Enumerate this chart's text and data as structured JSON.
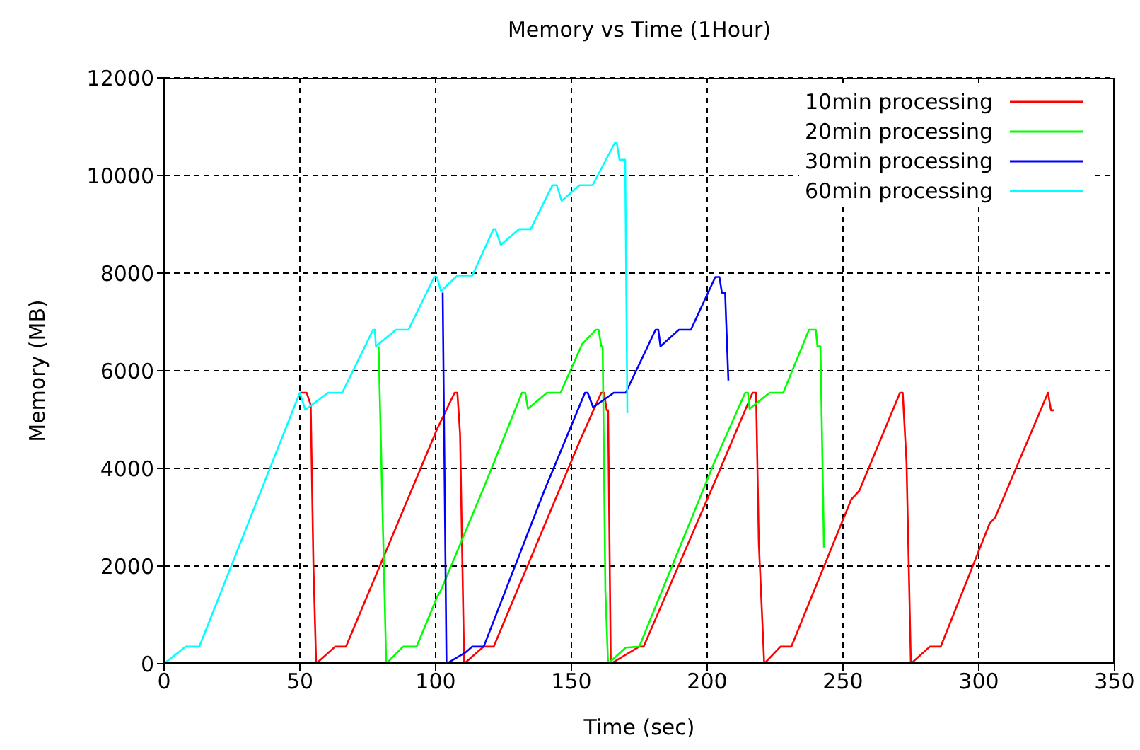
{
  "chart_data": {
    "type": "line",
    "title": "Memory vs Time (1Hour)",
    "xlabel": "Time (sec)",
    "ylabel": "Memory (MB)",
    "xlim": [
      0,
      350
    ],
    "xticks": [
      0,
      50,
      100,
      150,
      200,
      250,
      300,
      350
    ],
    "ylim": [
      0,
      12000
    ],
    "yticks": [
      0,
      2000,
      4000,
      6000,
      8000,
      10000,
      12000
    ],
    "grid": true,
    "legend": "top right",
    "marker": "none",
    "line_style": "solid",
    "series": [
      {
        "name": "10min processing",
        "color": "#ff0000",
        "x": [
          50,
          52.5,
          54,
          55,
          56,
          63,
          67,
          100.5,
          107,
          108,
          109,
          110.5,
          117.7,
          121.4,
          153,
          161,
          162,
          163,
          163.5,
          164.5,
          175,
          176.6,
          203.6,
          216.7,
          218,
          219,
          221,
          227,
          231,
          253,
          256,
          271,
          272,
          273.4,
          275,
          282,
          286,
          304,
          306,
          325.5,
          326.6,
          327.6
        ],
        "values": [
          5550,
          5550,
          5300,
          2000,
          0,
          350,
          350,
          4800,
          5550,
          5550,
          4700,
          0,
          350,
          350,
          4550,
          5550,
          5550,
          5190,
          5190,
          0,
          350,
          350,
          3830,
          5550,
          5550,
          2490,
          0,
          350,
          350,
          3360,
          3540,
          5550,
          5550,
          4120,
          0,
          350,
          350,
          2870,
          2990,
          5550,
          5190,
          5190
        ]
      },
      {
        "name": "20min processing",
        "color": "#00ff00",
        "x": [
          79,
          81.8,
          88,
          93,
          100.5,
          102,
          117.7,
          131.8,
          133,
          134,
          141,
          146,
          154,
          159,
          160,
          161,
          161.5,
          162.5,
          163.5,
          170,
          175,
          202.6,
          214,
          215,
          215.6,
          223,
          228,
          237.5,
          239,
          240,
          240.6,
          241.7,
          243
        ],
        "values": [
          6500,
          0,
          350,
          350,
          1360,
          1510,
          3600,
          5550,
          5550,
          5220,
          5550,
          5550,
          6550,
          6840,
          6840,
          6500,
          6500,
          1500,
          0,
          330,
          350,
          4120,
          5550,
          5550,
          5220,
          5550,
          5550,
          6840,
          6840,
          6840,
          6500,
          6500,
          2380
        ]
      },
      {
        "name": "30min processing",
        "color": "#0000ff",
        "x": [
          102.6,
          104,
          111,
          113.5,
          117.7,
          140,
          155,
          156,
          158,
          165.6,
          170,
          181,
          182,
          182.8,
          189.6,
          194,
          203,
          204.5,
          205.4,
          206.6,
          207.8
        ],
        "values": [
          7600,
          0,
          230,
          350,
          350,
          3540,
          5550,
          5550,
          5250,
          5550,
          5550,
          6840,
          6840,
          6500,
          6840,
          6840,
          7920,
          7920,
          7600,
          7600,
          5800
        ]
      },
      {
        "name": "60min processing",
        "color": "#00ffff",
        "x": [
          0,
          8,
          13,
          50,
          52,
          60.4,
          65.6,
          77,
          77.6,
          78,
          85.4,
          90,
          99.5,
          100.5,
          102,
          108,
          113.5,
          121.3,
          122,
          124,
          130.7,
          135,
          143,
          144.6,
          146.4,
          153,
          157.8,
          166,
          166.7,
          167.7,
          169.8,
          170.6
        ],
        "values": [
          0,
          350,
          350,
          5550,
          5200,
          5550,
          5550,
          6840,
          6840,
          6500,
          6840,
          6840,
          7920,
          7920,
          7630,
          7950,
          7950,
          8900,
          8900,
          8580,
          8900,
          8900,
          9800,
          9800,
          9480,
          9800,
          9800,
          10670,
          10670,
          10320,
          10320,
          5130
        ]
      }
    ]
  }
}
